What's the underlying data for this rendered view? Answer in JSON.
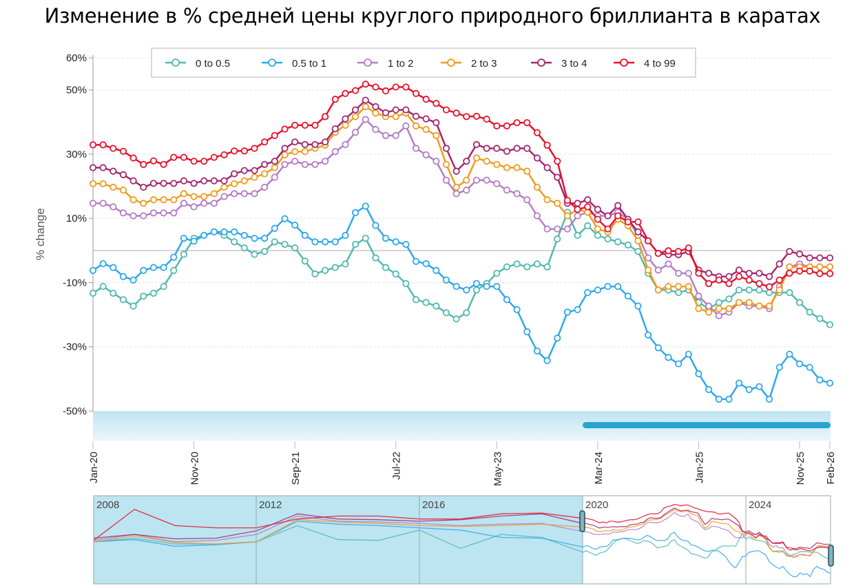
{
  "chart_data": {
    "type": "line",
    "title": "Изменение в % средней цены круглого природного бриллианта в каратах",
    "ylabel": "% change",
    "xlabel": "",
    "ylim": [
      -50,
      60
    ],
    "y_ticks": [
      "60%",
      "50%",
      "30%",
      "10%",
      "-10%",
      "-30%",
      "-50%"
    ],
    "y_tick_values": [
      60,
      50,
      30,
      10,
      -10,
      -30,
      -50
    ],
    "x_start": "Jan-20",
    "x_end": "Feb-26",
    "x_frequency": "monthly",
    "x_ticks": [
      {
        "label": "Jan-20",
        "index": 0
      },
      {
        "label": "Nov-20",
        "index": 10
      },
      {
        "label": "Sep-21",
        "index": 20
      },
      {
        "label": "Jul-22",
        "index": 30
      },
      {
        "label": "May-23",
        "index": 40
      },
      {
        "label": "Mar-24",
        "index": 50
      },
      {
        "label": "Jan-25",
        "index": 60
      },
      {
        "label": "Nov-25",
        "index": 70
      },
      {
        "label": "Feb-26",
        "index": 73
      }
    ],
    "grid": true,
    "legend_placement": "top",
    "series": [
      {
        "name": "0 to 0.5",
        "color": "#52b9b1",
        "values": [
          -13.3,
          -11.2,
          -13.3,
          -15.3,
          -17.3,
          -14.2,
          -13.3,
          -11.2,
          -6.2,
          -1.2,
          3.8,
          4.7,
          5.8,
          4.7,
          2.7,
          0.8,
          -1.2,
          -0.3,
          2.7,
          1.9,
          0.8,
          -3.3,
          -7.3,
          -6.2,
          -5.3,
          -4.2,
          1.9,
          3.8,
          -2.3,
          -5.3,
          -7.3,
          -10.3,
          -15.3,
          -16.2,
          -17.3,
          -19.4,
          -21.3,
          -19.4,
          -12.3,
          -10.3,
          -7.1,
          -5.1,
          -4.2,
          -5.1,
          -4.2,
          -5.1,
          3.6,
          11.9,
          4.7,
          7.7,
          4.7,
          3.6,
          2.7,
          1.7,
          -0.3,
          -7.1,
          -12.3,
          -12.3,
          -13.1,
          -12.3,
          -16.2,
          -18.1,
          -16.2,
          -15.1,
          -12.3,
          -12.3,
          -12.3,
          -13.1,
          -13.1,
          -13.1,
          -16.2,
          -19.2,
          -21.2,
          -23.1
        ]
      },
      {
        "name": "0.5 to 1",
        "color": "#2ea7ee",
        "values": [
          -6.2,
          -4.1,
          -5.3,
          -8.1,
          -9.2,
          -6.2,
          -5.3,
          -5.3,
          -2.1,
          3.8,
          2.9,
          4.7,
          5.8,
          5.8,
          5.8,
          4.7,
          3.8,
          3.8,
          6.9,
          9.9,
          7.9,
          4.7,
          2.7,
          2.7,
          2.7,
          4.7,
          11.8,
          13.8,
          7.8,
          3.8,
          2.7,
          1.9,
          -3.4,
          -4.1,
          -6.2,
          -9.2,
          -11.2,
          -12.3,
          -10.3,
          -11.2,
          -11.2,
          -15.3,
          -18.4,
          -25.3,
          -31.3,
          -34.3,
          -27.3,
          -19.2,
          -18.4,
          -13.1,
          -12.3,
          -11.2,
          -11.2,
          -14.2,
          -17.3,
          -26.3,
          -30.3,
          -33.3,
          -35.3,
          -32.3,
          -38.4,
          -43.3,
          -46.3,
          -46.3,
          -41.3,
          -43.3,
          -42.4,
          -46.3,
          -36.4,
          -32.3,
          -35.3,
          -36.4,
          -40.3,
          -41.3
        ]
      },
      {
        "name": "1 to 2",
        "color": "#b47cc6",
        "values": [
          14.7,
          14.7,
          13.6,
          11.7,
          10.8,
          10.8,
          11.7,
          11.7,
          11.7,
          14.7,
          13.6,
          14.7,
          14.7,
          16.8,
          17.7,
          17.7,
          17.7,
          19.7,
          22.8,
          26.8,
          27.8,
          26.8,
          26.8,
          27.8,
          30.8,
          33,
          36.8,
          40.8,
          37.7,
          35.8,
          35.8,
          38.8,
          31.8,
          29.8,
          27.8,
          21.9,
          17.7,
          18.8,
          21.9,
          21.9,
          20.8,
          18.8,
          17.7,
          15.8,
          10.8,
          6.7,
          6.7,
          6.7,
          10.8,
          11.9,
          10.8,
          10.8,
          11.9,
          9.7,
          4.7,
          -2.3,
          -6.1,
          -4.2,
          -7.1,
          -7.1,
          -14.2,
          -17.3,
          -20.3,
          -19.2,
          -16.2,
          -17.3,
          -17.3,
          -18.1,
          -11.2,
          -5.1,
          -4.2,
          -5.1,
          -5.1,
          -5.1
        ]
      },
      {
        "name": "2 to 3",
        "color": "#f39a1c",
        "values": [
          20.8,
          20.8,
          19.7,
          18.8,
          15.8,
          14.7,
          15.8,
          15.8,
          15.8,
          17.7,
          16.8,
          16.8,
          17.7,
          19.7,
          20.8,
          21.7,
          22.8,
          23.9,
          25.8,
          29.8,
          30.8,
          30.8,
          31.8,
          32.8,
          36.8,
          39,
          41.7,
          44.8,
          42.8,
          41.7,
          41.7,
          42.8,
          38.8,
          37.7,
          35.8,
          26.8,
          19.7,
          21.9,
          28.8,
          27.8,
          26.8,
          25.8,
          25.8,
          24.7,
          19.7,
          15.8,
          14.7,
          10.8,
          12.8,
          11.9,
          6.7,
          5.8,
          9.7,
          7.7,
          3.0,
          -6.1,
          -12.3,
          -11.2,
          -11.2,
          -11.2,
          -18.1,
          -19.2,
          -18.1,
          -18.1,
          -16.2,
          -16.2,
          -17.3,
          -17.3,
          -12.3,
          -5.1,
          -5.1,
          -5.1,
          -5.1,
          -5.1
        ]
      },
      {
        "name": "3 to 4",
        "color": "#a3276f",
        "values": [
          25.8,
          25.8,
          24.7,
          23.6,
          21.7,
          19.7,
          20.9,
          20.9,
          20.9,
          21.7,
          20.9,
          21.7,
          21.7,
          21.7,
          23.9,
          24.9,
          24.9,
          26.8,
          27.8,
          31.8,
          33.8,
          33,
          33,
          33.8,
          37.9,
          41,
          43.8,
          46.8,
          44.8,
          42.9,
          43.8,
          43.8,
          41.8,
          41,
          39.8,
          31.8,
          24.7,
          27.8,
          33,
          31.8,
          31.8,
          30.9,
          31.8,
          31.8,
          28.8,
          25.8,
          22.8,
          14.7,
          14.7,
          15.8,
          12.8,
          10.8,
          14,
          9.7,
          5.8,
          3.0,
          -0.9,
          -1.3,
          -1.3,
          -0.3,
          -6.1,
          -7.1,
          -8.1,
          -8.1,
          -6.1,
          -7.1,
          -7.1,
          -8.1,
          -4.2,
          -0.3,
          -1.1,
          -2.3,
          -2.3,
          -2.3
        ]
      },
      {
        "name": "4 to 99",
        "color": "#e8112b",
        "values": [
          32.9,
          32.9,
          31.8,
          30.9,
          28.8,
          26.8,
          27.9,
          26.8,
          29,
          29,
          27.8,
          27.8,
          29,
          29.8,
          31,
          31,
          31.8,
          33.8,
          35.8,
          37.8,
          39,
          39,
          39,
          41.7,
          47.1,
          48.9,
          49.8,
          51.8,
          50.9,
          49.7,
          50.9,
          50.9,
          48.9,
          47.1,
          45.8,
          43.8,
          42.8,
          41.7,
          41.8,
          40.9,
          38.8,
          38.8,
          39.8,
          39.8,
          36.7,
          32.8,
          27.8,
          15.6,
          12.8,
          13.6,
          9.7,
          6.7,
          10.8,
          8.9,
          8.9,
          3.0,
          -0.9,
          -0.1,
          -0.3,
          0.8,
          -7.1,
          -10.3,
          -9.2,
          -10.3,
          -8.1,
          -9.2,
          -10.3,
          -11.3,
          -9.2,
          -7.1,
          -6.4,
          -6.4,
          -7.2,
          -7.2
        ]
      }
    ],
    "navigator": {
      "year_labels": [
        "2008",
        "2012",
        "2016",
        "2020",
        "2024"
      ],
      "selected_range": [
        "Jan-20",
        "Feb-26"
      ],
      "history_years": [
        2008,
        2009,
        2010,
        2011,
        2012,
        2013,
        2014,
        2015,
        2016,
        2017,
        2018,
        2019,
        2020
      ],
      "history": [
        [
          1,
          6,
          -2,
          -2,
          1,
          23,
          4,
          3,
          17,
          -8,
          11,
          7,
          -13
        ],
        [
          1,
          4,
          -5,
          -3,
          1,
          29,
          25,
          23,
          20,
          17,
          7,
          6,
          -6
        ],
        [
          3,
          11,
          1,
          3,
          11,
          36,
          29,
          28,
          26,
          23,
          25,
          26,
          15
        ],
        [
          1,
          9,
          0,
          -2,
          1,
          31,
          28,
          26,
          23,
          22,
          23,
          25,
          21
        ],
        [
          6,
          11,
          5,
          6,
          16,
          39,
          32,
          31,
          29,
          31,
          36,
          39,
          26
        ],
        [
          3,
          45,
          23,
          20,
          20,
          32,
          36,
          36,
          32,
          32,
          39,
          40,
          33
        ]
      ]
    }
  }
}
